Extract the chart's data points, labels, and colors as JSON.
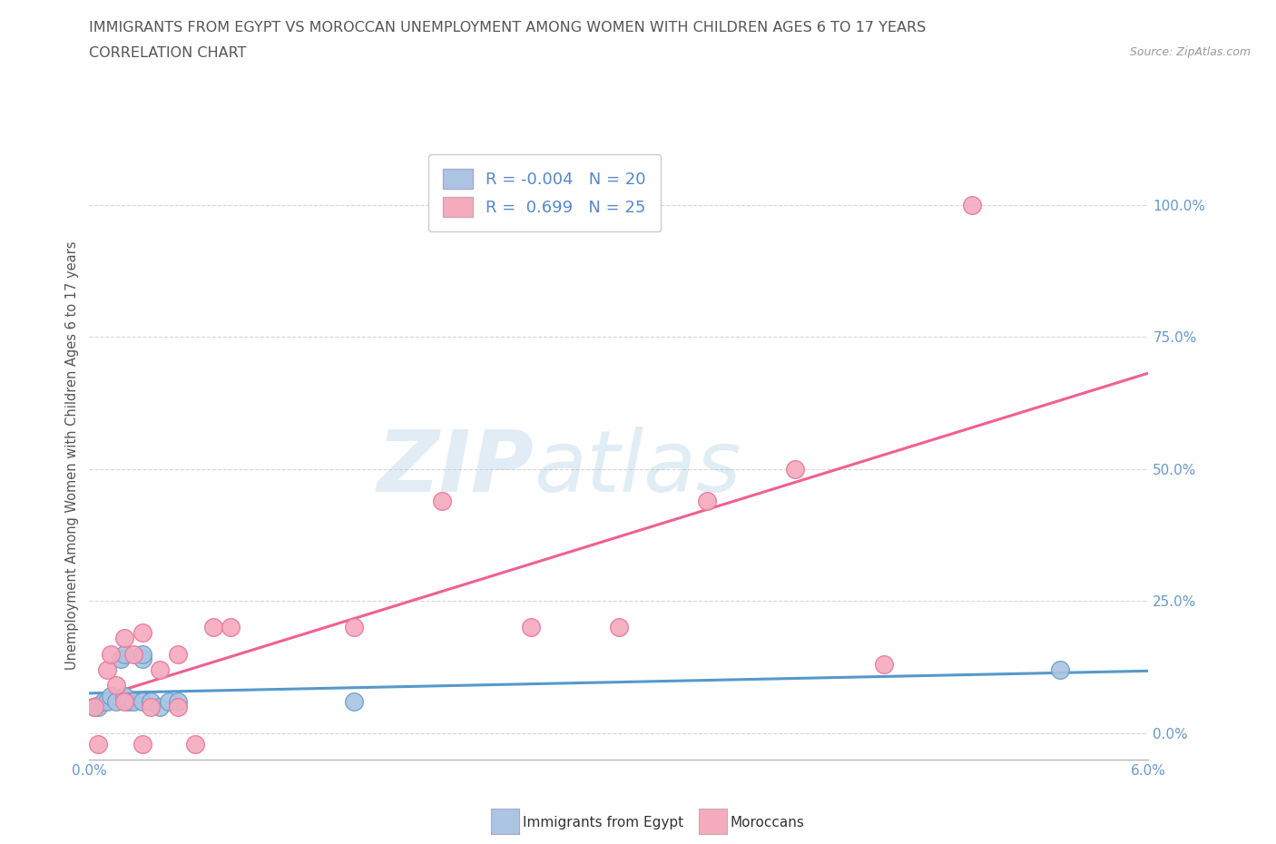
{
  "title_line1": "IMMIGRANTS FROM EGYPT VS MOROCCAN UNEMPLOYMENT AMONG WOMEN WITH CHILDREN AGES 6 TO 17 YEARS",
  "title_line2": "CORRELATION CHART",
  "source_text": "Source: ZipAtlas.com",
  "ylabel_label": "Unemployment Among Women with Children Ages 6 to 17 years",
  "xlim": [
    0.0,
    0.06
  ],
  "ylim": [
    -0.05,
    1.1
  ],
  "xticks": [
    0.0,
    0.01,
    0.02,
    0.03,
    0.04,
    0.05,
    0.06
  ],
  "xtick_labels": [
    "0.0%",
    "",
    "",
    "",
    "",
    "",
    "6.0%"
  ],
  "yticks": [
    0.0,
    0.25,
    0.5,
    0.75,
    1.0
  ],
  "ytick_labels": [
    "0.0%",
    "25.0%",
    "50.0%",
    "75.0%",
    "100.0%"
  ],
  "egypt_color": "#aac4e2",
  "egypt_edge_color": "#6a9fc8",
  "morocco_color": "#f5aabe",
  "morocco_edge_color": "#e8789a",
  "trendline_egypt_color": "#5599cc",
  "trendline_morocco_color": "#f06090",
  "legend_r_egypt": "R = -0.004",
  "legend_n_egypt": "N = 20",
  "legend_r_morocco": "R =  0.699",
  "legend_n_morocco": "N = 25",
  "watermark_zip": "ZIP",
  "watermark_atlas": "atlas",
  "background_color": "#ffffff",
  "grid_color": "#cccccc",
  "title_color": "#555555",
  "axis_label_color": "#6699cc",
  "legend_text_color": "#5588cc",
  "egypt_x": [
    0.0003,
    0.0005,
    0.0008,
    0.001,
    0.0012,
    0.0015,
    0.0018,
    0.002,
    0.002,
    0.0022,
    0.0025,
    0.003,
    0.003,
    0.003,
    0.0035,
    0.004,
    0.0045,
    0.005,
    0.015,
    0.055
  ],
  "egypt_y": [
    0.05,
    0.05,
    0.06,
    0.06,
    0.07,
    0.06,
    0.14,
    0.15,
    0.07,
    0.06,
    0.06,
    0.14,
    0.15,
    0.06,
    0.06,
    0.05,
    0.06,
    0.06,
    0.06,
    0.12
  ],
  "morocco_x": [
    0.0003,
    0.0005,
    0.001,
    0.0012,
    0.0015,
    0.002,
    0.002,
    0.0025,
    0.003,
    0.003,
    0.0035,
    0.004,
    0.005,
    0.005,
    0.006,
    0.007,
    0.008,
    0.015,
    0.02,
    0.025,
    0.03,
    0.035,
    0.04,
    0.045,
    0.05
  ],
  "morocco_y": [
    0.05,
    -0.02,
    0.12,
    0.15,
    0.09,
    0.06,
    0.18,
    0.15,
    0.19,
    -0.02,
    0.05,
    0.12,
    0.15,
    0.05,
    -0.02,
    0.2,
    0.2,
    0.2,
    0.44,
    0.2,
    0.2,
    0.44,
    0.5,
    0.13,
    1.0
  ],
  "bottom_legend_egypt": "Immigrants from Egypt",
  "bottom_legend_morocco": "Moroccans"
}
